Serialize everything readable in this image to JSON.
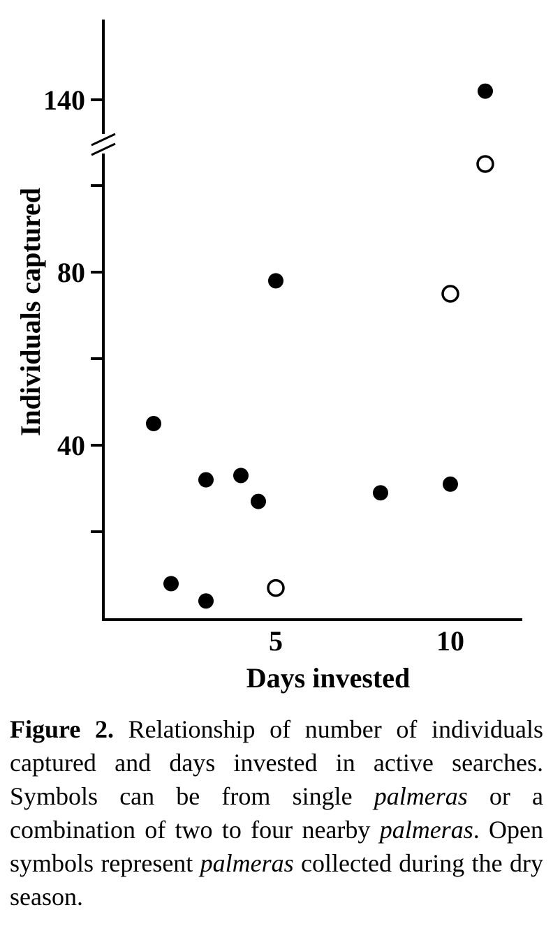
{
  "figure": {
    "caption_runs": [
      {
        "text": "Figure 2.",
        "style": "bold"
      },
      {
        "text": " Relationship of number of individuals captured and days invested in active searches. Symbols can be from single ",
        "style": "normal"
      },
      {
        "text": "palmeras",
        "style": "italic"
      },
      {
        "text": " or a combination of two to four nearby ",
        "style": "normal"
      },
      {
        "text": "palmeras",
        "style": "italic"
      },
      {
        "text": ". Open symbols represent ",
        "style": "normal"
      },
      {
        "text": "palmeras",
        "style": "italic"
      },
      {
        "text": " collected during the dry season.",
        "style": "normal"
      }
    ]
  },
  "chart_data": {
    "type": "scatter",
    "title": "",
    "xlabel": "Days invested",
    "ylabel": "Individuals captured",
    "grid": false,
    "legend": "none",
    "x_axis": {
      "range": [
        0,
        12
      ],
      "ticks": [
        {
          "value": 5,
          "label": "5"
        },
        {
          "value": 10,
          "label": "10"
        }
      ]
    },
    "y_axis": {
      "range": [
        0,
        150
      ],
      "axis_break": {
        "between": [
          100,
          140
        ]
      },
      "ticks": [
        {
          "value": 20,
          "label": ""
        },
        {
          "value": 40,
          "label": "40"
        },
        {
          "value": 60,
          "label": ""
        },
        {
          "value": 80,
          "label": "80"
        },
        {
          "value": 100,
          "label": ""
        },
        {
          "value": 140,
          "label": "140"
        }
      ]
    },
    "marker_color": "#000000",
    "series": [
      {
        "name": "closed symbols",
        "marker": "filled",
        "points": [
          [
            1.5,
            45
          ],
          [
            2,
            8
          ],
          [
            3,
            4
          ],
          [
            3,
            32
          ],
          [
            4,
            33
          ],
          [
            4.5,
            27
          ],
          [
            5,
            78
          ],
          [
            8,
            29
          ],
          [
            10,
            31
          ],
          [
            11,
            142
          ]
        ]
      },
      {
        "name": "open symbols (dry season)",
        "marker": "open",
        "points": [
          [
            5,
            7
          ],
          [
            10,
            75
          ],
          [
            11,
            105
          ]
        ]
      }
    ]
  }
}
